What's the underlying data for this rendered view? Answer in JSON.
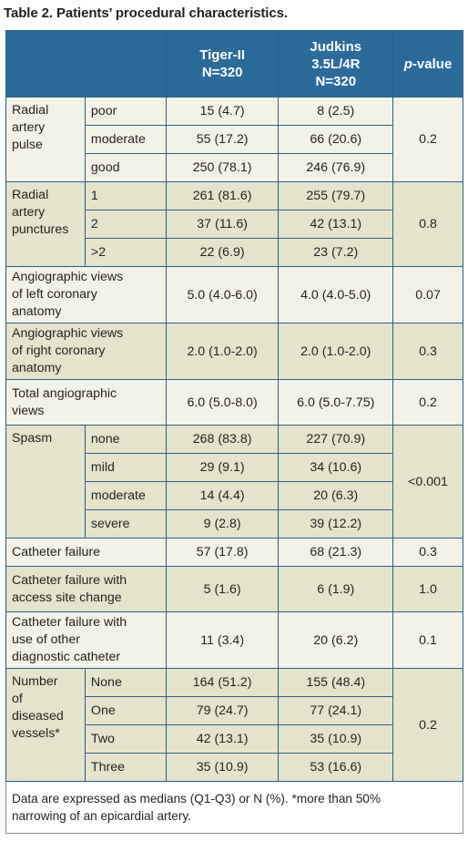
{
  "title": "Table 2. Patients’ procedural characteristics.",
  "header": {
    "col1_line1": "Tiger-II",
    "col1_line2": "N=320",
    "col2_line1": "Judkins",
    "col2_line2": "3.5L/4R",
    "col2_line3": "N=320",
    "pvalue_italic": "p",
    "pvalue_rest": "-value"
  },
  "rows": {
    "radial_pulse": {
      "label_l1": "Radial",
      "label_l2": "artery",
      "label_l3": "pulse",
      "p": "0.2",
      "items": [
        {
          "sub": "poor",
          "a": "15 (4.7)",
          "b": "8 (2.5)"
        },
        {
          "sub": "moderate",
          "a": "55 (17.2)",
          "b": "66 (20.6)"
        },
        {
          "sub": "good",
          "a": "250 (78.1)",
          "b": "246 (76.9)"
        }
      ]
    },
    "radial_punct": {
      "label_l1": "Radial",
      "label_l2": "artery",
      "label_l3": "punctures",
      "p": "0.8",
      "items": [
        {
          "sub": "1",
          "a": "261 (81.6)",
          "b": "255 (79.7)"
        },
        {
          "sub": "2",
          "a": "37 (11.6)",
          "b": "42 (13.1)"
        },
        {
          "sub": ">2",
          "a": "22 (6.9)",
          "b": "23 (7.2)"
        }
      ]
    },
    "views_left": {
      "l1": "Angiographic views",
      "l2": "of left coronary",
      "l3": "anatomy",
      "a": "5.0 (4.0-6.0)",
      "b": "4.0 (4.0-5.0)",
      "p": "0.07"
    },
    "views_right": {
      "l1": "Angiographic views",
      "l2": "of right coronary",
      "l3": "anatomy",
      "a": "2.0 (1.0-2.0)",
      "b": "2.0 (1.0-2.0)",
      "p": "0.3"
    },
    "views_total": {
      "l1": "Total angiographic",
      "l2": "views",
      "a": "6.0 (5.0-8.0)",
      "b": "6.0 (5.0-7.75)",
      "p": "0.2"
    },
    "spasm": {
      "label": "Spasm",
      "p": "<0.001",
      "items": [
        {
          "sub": "none",
          "a": "268 (83.8)",
          "b": "227 (70.9)"
        },
        {
          "sub": "mild",
          "a": "29 (9.1)",
          "b": "34 (10.6)"
        },
        {
          "sub": "moderate",
          "a": "14 (4.4)",
          "b": "20 (6.3)"
        },
        {
          "sub": "severe",
          "a": "9 (2.8)",
          "b": "39 (12.2)"
        }
      ]
    },
    "cath_fail": {
      "label": "Catheter failure",
      "a": "57 (17.8)",
      "b": "68 (21.3)",
      "p": "0.3"
    },
    "cath_fail_access": {
      "l1": "Catheter failure with",
      "l2": "access site change",
      "a": "5 (1.6)",
      "b": "6 (1.9)",
      "p": "1.0"
    },
    "cath_fail_other": {
      "l1": "Catheter failure with",
      "l2": "use of other",
      "l3": "diagnostic catheter",
      "a": "11 (3.4)",
      "b": "20 (6.2)",
      "p": "0.1"
    },
    "vessels": {
      "label_l1": "Number",
      "label_l2": "of",
      "label_l3": "diseased",
      "label_l4": "vessels*",
      "p": "0.2",
      "items": [
        {
          "sub": "None",
          "a": "164 (51.2)",
          "b": "155 (48.4)"
        },
        {
          "sub": "One",
          "a": "79 (24.7)",
          "b": "77 (24.1)"
        },
        {
          "sub": "Two",
          "a": "42 (13.1)",
          "b": "35 (10.9)"
        },
        {
          "sub": "Three",
          "a": "35 (10.9)",
          "b": "53 (16.6)"
        }
      ]
    }
  },
  "footnote_l1": "Data are expressed as medians (Q1-Q3) or N (%). *more than 50%",
  "footnote_l2": "narrowing of an epicardial artery."
}
